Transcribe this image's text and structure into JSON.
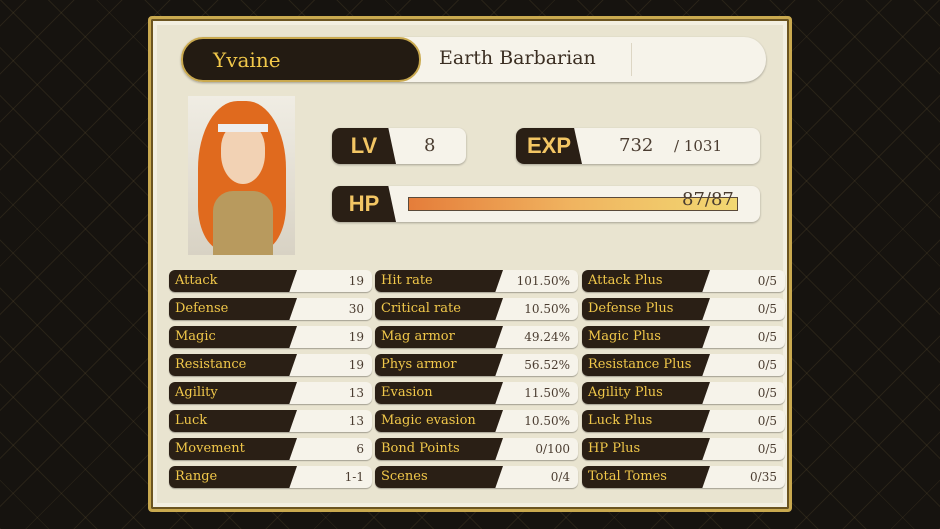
{
  "character": {
    "name": "Yvaine",
    "class": "Earth Barbarian"
  },
  "level": {
    "label": "LV",
    "value": "8"
  },
  "exp": {
    "label": "EXP",
    "current": "732",
    "max": "/ 1031"
  },
  "hp": {
    "label": "HP",
    "text": "87/87",
    "current": 87,
    "max": 87
  },
  "stats": [
    [
      {
        "label": "Attack",
        "value": "19"
      },
      {
        "label": "Defense",
        "value": "30"
      },
      {
        "label": "Magic",
        "value": "19"
      },
      {
        "label": "Resistance",
        "value": "19"
      },
      {
        "label": "Agility",
        "value": "13"
      },
      {
        "label": "Luck",
        "value": "13"
      },
      {
        "label": "Movement",
        "value": "6"
      },
      {
        "label": "Range",
        "value": "1-1"
      }
    ],
    [
      {
        "label": "Hit rate",
        "value": "101.50%"
      },
      {
        "label": "Critical rate",
        "value": "10.50%"
      },
      {
        "label": "Mag armor",
        "value": "49.24%"
      },
      {
        "label": "Phys armor",
        "value": "56.52%"
      },
      {
        "label": "Evasion",
        "value": "11.50%"
      },
      {
        "label": "Magic evasion",
        "value": "10.50%"
      },
      {
        "label": "Bond Points",
        "value": "0/100"
      },
      {
        "label": "Scenes",
        "value": "0/4"
      }
    ],
    [
      {
        "label": "Attack Plus",
        "value": "0/5"
      },
      {
        "label": "Defense Plus",
        "value": "0/5"
      },
      {
        "label": "Magic Plus",
        "value": "0/5"
      },
      {
        "label": "Resistance Plus",
        "value": "0/5"
      },
      {
        "label": "Agility Plus",
        "value": "0/5"
      },
      {
        "label": "Luck Plus",
        "value": "0/5"
      },
      {
        "label": "HP Plus",
        "value": "0/5"
      },
      {
        "label": "Total Tomes",
        "value": "0/35"
      }
    ]
  ],
  "colors": {
    "accent": "#f1c84a",
    "dark": "#2a1f15",
    "parchment": "#e9e4d0",
    "frame": "#c9a94f"
  }
}
